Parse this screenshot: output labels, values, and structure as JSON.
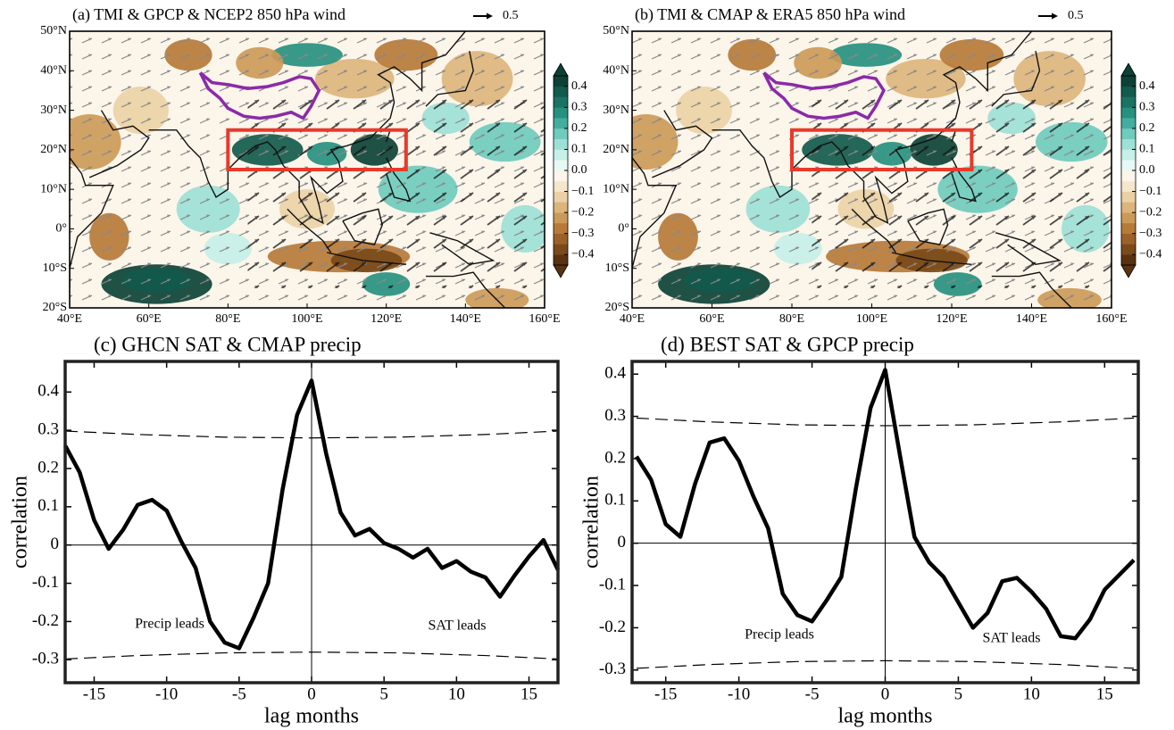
{
  "chart_data": [
    {
      "type": "map",
      "title": "(a) TMI & GPCP & NCEP2 850 hPa wind",
      "wind_key": 0.5,
      "xlim": [
        40,
        160
      ],
      "ylim": [
        -20,
        50
      ],
      "xticks": [
        {
          "value": 40,
          "label": "40°E"
        },
        {
          "value": 60,
          "label": "60°E"
        },
        {
          "value": 80,
          "label": "80°E"
        },
        {
          "value": 100,
          "label": "100°E"
        },
        {
          "value": 120,
          "label": "120°E"
        },
        {
          "value": 140,
          "label": "140°E"
        },
        {
          "value": 160,
          "label": "160°E"
        }
      ],
      "yticks": [
        {
          "value": -20,
          "label": "20°S"
        },
        {
          "value": -10,
          "label": "10°S"
        },
        {
          "value": 0,
          "label": "0°"
        },
        {
          "value": 10,
          "label": "10°N"
        },
        {
          "value": 20,
          "label": "20°N"
        },
        {
          "value": 30,
          "label": "30°N"
        },
        {
          "value": 40,
          "label": "40°N"
        },
        {
          "value": 50,
          "label": "50°N"
        }
      ],
      "colorbar": {
        "lim": [
          -0.45,
          0.45
        ],
        "colors": [
          "#5a3210",
          "#7a4a1a",
          "#9a6228",
          "#b77a38",
          "#cc9a58",
          "#ddb57c",
          "#ecd1a6",
          "#f5e6cc",
          "#fbf5ea",
          "#e8f8f5",
          "#c6efe8",
          "#9de0d6",
          "#6fcbbd",
          "#43ad9e",
          "#27907f",
          "#1a7363",
          "#125a4c",
          "#0c4236"
        ],
        "ticks": [
          0.4,
          0.3,
          0.2,
          0.1,
          {
            "value": 0,
            "label": "0.0"
          },
          {
            "value": -0.1,
            "label": "−0.1"
          },
          {
            "value": -0.2,
            "label": "−0.2"
          },
          {
            "value": -0.3,
            "label": "−0.3"
          },
          {
            "value": -0.4,
            "label": "−0.4"
          }
        ]
      }
    },
    {
      "type": "map",
      "title": "(b) TMI & CMAP & ERA5 850 hPa wind",
      "wind_key": 0.5,
      "xlim": [
        40,
        160
      ],
      "ylim": [
        -20,
        50
      ],
      "xticks": [
        {
          "value": 40,
          "label": "40°E"
        },
        {
          "value": 60,
          "label": "60°E"
        },
        {
          "value": 80,
          "label": "80°E"
        },
        {
          "value": 100,
          "label": "100°E"
        },
        {
          "value": 120,
          "label": "120°E"
        },
        {
          "value": 140,
          "label": "140°E"
        },
        {
          "value": 160,
          "label": "160°E"
        }
      ],
      "yticks": [
        {
          "value": -20,
          "label": "20°S"
        },
        {
          "value": -10,
          "label": "10°S"
        },
        {
          "value": 0,
          "label": "0°"
        },
        {
          "value": 10,
          "label": "10°N"
        },
        {
          "value": 20,
          "label": "20°N"
        },
        {
          "value": 30,
          "label": "30°N"
        },
        {
          "value": 40,
          "label": "40°N"
        },
        {
          "value": 50,
          "label": "50°N"
        }
      ],
      "colorbar": {
        "lim": [
          -0.45,
          0.45
        ],
        "colors": [
          "#5a3210",
          "#7a4a1a",
          "#9a6228",
          "#b77a38",
          "#cc9a58",
          "#ddb57c",
          "#ecd1a6",
          "#f5e6cc",
          "#fbf5ea",
          "#e8f8f5",
          "#c6efe8",
          "#9de0d6",
          "#6fcbbd",
          "#43ad9e",
          "#27907f",
          "#1a7363",
          "#125a4c",
          "#0c4236"
        ],
        "ticks": [
          0.4,
          0.3,
          0.2,
          0.1,
          {
            "value": 0,
            "label": "0.0"
          },
          {
            "value": -0.1,
            "label": "−0.1"
          },
          {
            "value": -0.2,
            "label": "−0.2"
          },
          {
            "value": -0.3,
            "label": "−0.3"
          },
          {
            "value": -0.4,
            "label": "−0.4"
          }
        ]
      }
    },
    {
      "type": "line",
      "title": "(c) GHCN SAT & CMAP precip",
      "xlabel": "lag months",
      "ylabel": "correlation",
      "annotations": [
        "Precip leads",
        "SAT leads"
      ],
      "color": "#000000",
      "xlim": [
        -17,
        17
      ],
      "ylim": [
        -0.36,
        0.48
      ],
      "xticks": [
        -15,
        -10,
        -5,
        0,
        5,
        10,
        15
      ],
      "yticks": [
        0.4,
        0.3,
        0.2,
        0.1,
        0,
        -0.1,
        -0.2,
        -0.3
      ],
      "x": [
        -17,
        -16,
        -15,
        -14,
        -13,
        -12,
        -11,
        -10,
        -9,
        -8,
        -7,
        -6,
        -5,
        -4,
        -3,
        -2,
        -1,
        0,
        1,
        2,
        3,
        4,
        5,
        6,
        7,
        8,
        9,
        10,
        11,
        12,
        13,
        14,
        15,
        16,
        17
      ],
      "values": [
        0.26,
        0.19,
        0.065,
        -0.01,
        0.04,
        0.105,
        0.118,
        0.09,
        0.01,
        -0.06,
        -0.2,
        -0.255,
        -0.27,
        -0.19,
        -0.1,
        0.145,
        0.34,
        0.43,
        0.24,
        0.085,
        0.025,
        0.042,
        0.005,
        -0.01,
        -0.033,
        -0.01,
        -0.06,
        -0.042,
        -0.07,
        -0.085,
        -0.135,
        -0.08,
        -0.03,
        0.013,
        -0.065
      ],
      "sig_x": [
        -17,
        -12,
        -6,
        0,
        6,
        12,
        17
      ],
      "sig_upper": [
        0.298,
        0.289,
        0.282,
        0.28,
        0.282,
        0.289,
        0.298
      ],
      "sig_lower": [
        -0.298,
        -0.289,
        -0.282,
        -0.28,
        -0.282,
        -0.289,
        -0.298
      ]
    },
    {
      "type": "line",
      "title": "(d) BEST SAT & GPCP precip",
      "xlabel": "lag months",
      "ylabel": "correlation",
      "annotations": [
        "Precip leads",
        "SAT leads"
      ],
      "color": "#000000",
      "xlim": [
        -17.3,
        17.3
      ],
      "ylim": [
        -0.33,
        0.43
      ],
      "xticks": [
        -15,
        -10,
        -5,
        0,
        5,
        10,
        15
      ],
      "yticks": [
        0.4,
        0.3,
        0.2,
        0.1,
        0,
        -0.1,
        -0.2,
        -0.3
      ],
      "x": [
        -17,
        -16,
        -15,
        -14,
        -13,
        -12,
        -11,
        -10,
        -9,
        -8,
        -7,
        -6,
        -5,
        -4,
        -3,
        -2,
        -1,
        0,
        1,
        2,
        3,
        4,
        5,
        6,
        7,
        8,
        9,
        10,
        11,
        12,
        13,
        14,
        15,
        16,
        17
      ],
      "values": [
        0.205,
        0.15,
        0.045,
        0.015,
        0.14,
        0.238,
        0.248,
        0.195,
        0.11,
        0.035,
        -0.12,
        -0.17,
        -0.185,
        -0.135,
        -0.08,
        0.13,
        0.32,
        0.41,
        0.21,
        0.015,
        -0.045,
        -0.08,
        -0.14,
        -0.2,
        -0.165,
        -0.09,
        -0.082,
        -0.115,
        -0.155,
        -0.22,
        -0.225,
        -0.18,
        -0.11,
        -0.075,
        -0.04
      ],
      "sig_x": [
        -17,
        -12,
        -6,
        0,
        6,
        12,
        17
      ],
      "sig_upper": [
        0.296,
        0.287,
        0.28,
        0.278,
        0.28,
        0.287,
        0.296
      ],
      "sig_lower": [
        -0.296,
        -0.287,
        -0.28,
        -0.278,
        -0.28,
        -0.287,
        -0.296
      ]
    }
  ]
}
